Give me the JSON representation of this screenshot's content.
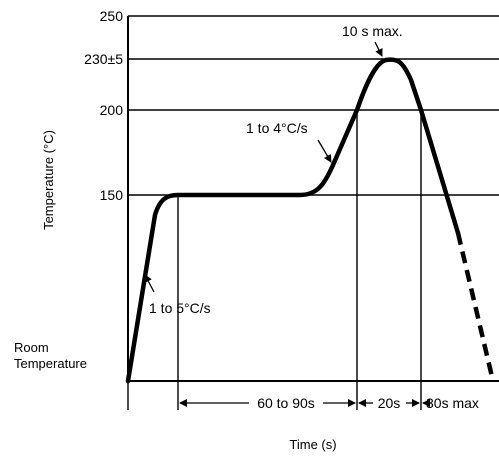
{
  "chart_data": {
    "type": "line",
    "title": "",
    "xlabel": "Time (s)",
    "ylabel": "Temperature (°C)",
    "y_axis": {
      "room_label_line1": "Room",
      "room_label_line2": "Temperature",
      "ticks": [
        {
          "value": 150,
          "label": "150"
        },
        {
          "value": 200,
          "label": "200"
        },
        {
          "value": 230,
          "label": "230±5"
        },
        {
          "value": 250,
          "label": "250"
        }
      ]
    },
    "grid": {
      "horizontal": [
        150,
        200,
        230,
        250
      ]
    },
    "profile": {
      "description_points": [
        {
          "t": 0,
          "temp": "Room"
        },
        {
          "t": "ramp to 150",
          "temp": 150
        },
        {
          "t": "60 to 90s soak",
          "temp": 150
        },
        {
          "t": "ramp to 200",
          "temp": 200
        },
        {
          "t": "peak",
          "temp": 230
        },
        {
          "t": "cool",
          "temp": "Room"
        }
      ]
    },
    "annotations": {
      "preheat_rate": "1 to 5°C/s",
      "ramp_rate": "1 to 4°C/s",
      "peak_note": "10 s max."
    },
    "intervals": [
      {
        "label": "60 to 90s"
      },
      {
        "label": "20s"
      },
      {
        "label": "30s max"
      }
    ]
  },
  "colors": {
    "line": "#000000",
    "background": "#ffffff"
  }
}
